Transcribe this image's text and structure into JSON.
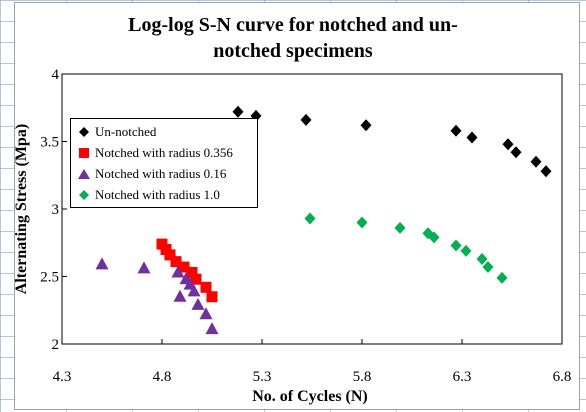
{
  "chart_data": {
    "type": "scatter",
    "title": [
      "Log-log S-N curve for notched and un-",
      "notched specimens"
    ],
    "xlabel": "No. of Cycles (N)",
    "ylabel": "Alternating Stress (Mpa)",
    "xlim": [
      4.3,
      6.8
    ],
    "ylim": [
      2,
      4
    ],
    "xticks": [
      "4.3",
      "4.8",
      "5.3",
      "5.8",
      "6.3",
      "6.8"
    ],
    "yticks": [
      "2",
      "2.5",
      "3",
      "3.5",
      "4"
    ],
    "grid": false,
    "legend_position": "top-left",
    "series": [
      {
        "name": "Un-notched",
        "marker": "diamond",
        "color": "#000000",
        "points": [
          [
            5.18,
            3.72
          ],
          [
            5.27,
            3.69
          ],
          [
            5.52,
            3.66
          ],
          [
            5.82,
            3.62
          ],
          [
            6.27,
            3.58
          ],
          [
            6.35,
            3.53
          ],
          [
            6.53,
            3.48
          ],
          [
            6.57,
            3.42
          ],
          [
            6.67,
            3.35
          ],
          [
            6.72,
            3.28
          ]
        ]
      },
      {
        "name": "Notched with radius 0.356",
        "marker": "square",
        "color": "#ff0000",
        "points": [
          [
            4.8,
            2.74
          ],
          [
            4.82,
            2.7
          ],
          [
            4.84,
            2.66
          ],
          [
            4.87,
            2.61
          ],
          [
            4.91,
            2.57
          ],
          [
            4.95,
            2.53
          ],
          [
            4.97,
            2.48
          ],
          [
            5.02,
            2.42
          ],
          [
            5.05,
            2.35
          ]
        ]
      },
      {
        "name": "Notched with radius 0.16",
        "marker": "triangle",
        "color": "#7030a0",
        "points": [
          [
            4.5,
            2.59
          ],
          [
            4.71,
            2.56
          ],
          [
            4.88,
            2.53
          ],
          [
            4.92,
            2.48
          ],
          [
            4.94,
            2.44
          ],
          [
            4.96,
            2.39
          ],
          [
            4.89,
            2.35
          ],
          [
            4.98,
            2.29
          ],
          [
            5.02,
            2.22
          ],
          [
            5.05,
            2.11
          ]
        ]
      },
      {
        "name": "Notched with radius 1.0",
        "marker": "diamond",
        "color": "#00b050",
        "points": [
          [
            5.54,
            2.93
          ],
          [
            5.8,
            2.9
          ],
          [
            5.99,
            2.86
          ],
          [
            6.13,
            2.82
          ],
          [
            6.16,
            2.79
          ],
          [
            6.27,
            2.73
          ],
          [
            6.32,
            2.69
          ],
          [
            6.4,
            2.63
          ],
          [
            6.43,
            2.57
          ],
          [
            6.5,
            2.49
          ]
        ]
      }
    ]
  }
}
